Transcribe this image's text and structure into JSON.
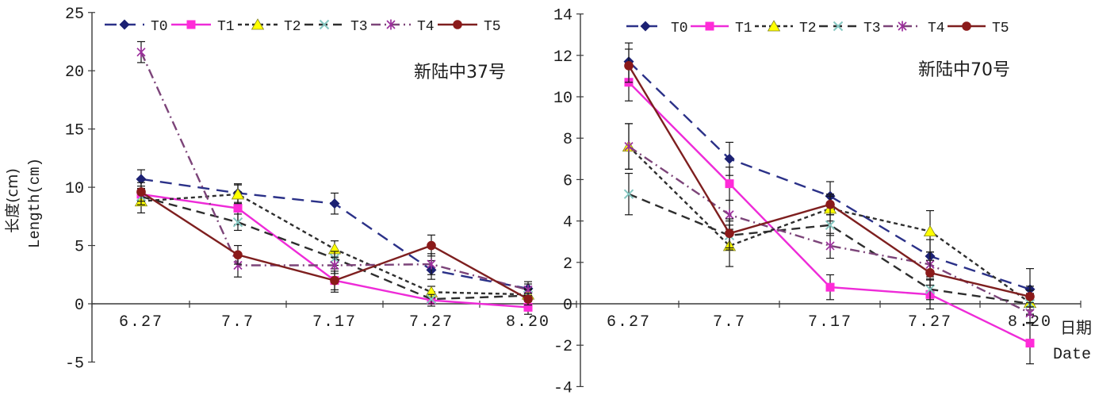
{
  "figure": {
    "background": "#ffffff",
    "y_axis_title_cn": "长度(cm)",
    "y_axis_title_en": "Length(cm)",
    "x_axis_title_cn": "日期",
    "x_axis_title_en": "Date"
  },
  "chart_data": [
    {
      "type": "line",
      "title": "新陆中37号",
      "xlabel": "日期 Date",
      "ylabel": "长度(cm) Length(cm)",
      "categories": [
        "6.27",
        "7.7",
        "7.17",
        "7.27",
        "8.20"
      ],
      "ylim": [
        -5,
        25
      ],
      "yticks": [
        25,
        20,
        15,
        10,
        5,
        0,
        -5
      ],
      "grid": false,
      "legend_position": "top",
      "error_bars": true,
      "series": [
        {
          "name": "T0",
          "line_style": "long-dash",
          "marker": "diamond",
          "line_color": "#2B3188",
          "marker_color": "#1C2173",
          "values": [
            10.7,
            9.5,
            8.6,
            2.9,
            1.3
          ],
          "errors": [
            0.8,
            0.8,
            0.9,
            0.8,
            0.6
          ]
        },
        {
          "name": "T1",
          "line_style": "solid",
          "marker": "square",
          "line_color": "#EE2BD8",
          "marker_color": "#FF2BD8",
          "values": [
            9.4,
            8.2,
            2.0,
            0.3,
            -0.3
          ],
          "errors": [
            0.7,
            1.4,
            1.0,
            0.5,
            0.6
          ]
        },
        {
          "name": "T2",
          "line_style": "short-dash",
          "marker": "triangle",
          "line_color": "#2E2E2E",
          "marker_color": "#FFFF00",
          "values": [
            8.8,
            9.4,
            4.7,
            1.0,
            0.8
          ],
          "errors": [
            1.0,
            0.8,
            0.7,
            0.5,
            0.5
          ]
        },
        {
          "name": "T3",
          "line_style": "dash",
          "marker": "x",
          "line_color": "#2E2E2E",
          "marker_color": "#85C7C1",
          "values": [
            9.2,
            7.0,
            3.9,
            0.4,
            0.7
          ],
          "errors": [
            0.7,
            0.7,
            0.6,
            0.4,
            0.5
          ]
        },
        {
          "name": "T4",
          "line_style": "dash-dot",
          "marker": "asterisk",
          "line_color": "#7C4479",
          "marker_color": "#9C2F9C",
          "values": [
            21.6,
            3.3,
            3.3,
            3.4,
            1.2
          ],
          "errors": [
            0.9,
            1.0,
            0.7,
            0.9,
            0.5
          ]
        },
        {
          "name": "T5",
          "line_style": "solid",
          "marker": "circle",
          "line_color": "#7E1F1F",
          "marker_color": "#8B1A1A",
          "values": [
            9.6,
            4.2,
            2.0,
            5.0,
            0.4
          ],
          "errors": [
            0.8,
            0.8,
            0.8,
            0.9,
            0.5
          ]
        }
      ]
    },
    {
      "type": "line",
      "title": "新陆中70号",
      "xlabel": "日期 Date",
      "ylabel": "长度(cm) Length(cm)",
      "categories": [
        "6.27",
        "7.7",
        "7.17",
        "7.27",
        "8.20"
      ],
      "ylim": [
        -4,
        14
      ],
      "yticks": [
        14,
        12,
        10,
        8,
        6,
        4,
        2,
        0,
        -2,
        -4
      ],
      "grid": false,
      "legend_position": "top",
      "error_bars": true,
      "series": [
        {
          "name": "T0",
          "line_style": "long-dash",
          "marker": "diamond",
          "line_color": "#2B3188",
          "marker_color": "#1C2173",
          "values": [
            11.7,
            7.0,
            5.2,
            2.3,
            0.7
          ],
          "errors": [
            0.9,
            0.8,
            0.7,
            0.8,
            1.0
          ]
        },
        {
          "name": "T1",
          "line_style": "solid",
          "marker": "square",
          "line_color": "#EE2BD8",
          "marker_color": "#FF2BD8",
          "values": [
            10.7,
            5.8,
            0.8,
            0.45,
            -1.9
          ],
          "errors": [
            0.9,
            0.8,
            0.6,
            0.7,
            1.0
          ]
        },
        {
          "name": "T2",
          "line_style": "short-dash",
          "marker": "triangle",
          "line_color": "#2E2E2E",
          "marker_color": "#FFFF00",
          "values": [
            7.6,
            2.8,
            4.6,
            3.5,
            0.05
          ],
          "errors": [
            1.1,
            1.0,
            0.6,
            1.0,
            0.6
          ]
        },
        {
          "name": "T3",
          "line_style": "dash",
          "marker": "x",
          "line_color": "#2E2E2E",
          "marker_color": "#85C7C1",
          "values": [
            5.3,
            3.3,
            3.8,
            0.7,
            0.0
          ],
          "errors": [
            1.0,
            0.7,
            0.5,
            0.5,
            0.5
          ]
        },
        {
          "name": "T4",
          "line_style": "dash-dot",
          "marker": "asterisk",
          "line_color": "#7C4479",
          "marker_color": "#9C2F9C",
          "values": [
            7.6,
            4.3,
            2.8,
            1.9,
            -0.45
          ],
          "errors": [
            1.1,
            0.7,
            0.6,
            0.6,
            0.5
          ]
        },
        {
          "name": "T5",
          "line_style": "solid",
          "marker": "circle",
          "line_color": "#7E1F1F",
          "marker_color": "#8B1A1A",
          "values": [
            11.5,
            3.4,
            4.8,
            1.5,
            0.35
          ],
          "errors": [
            0.8,
            0.7,
            0.5,
            0.6,
            0.5
          ]
        }
      ]
    }
  ]
}
